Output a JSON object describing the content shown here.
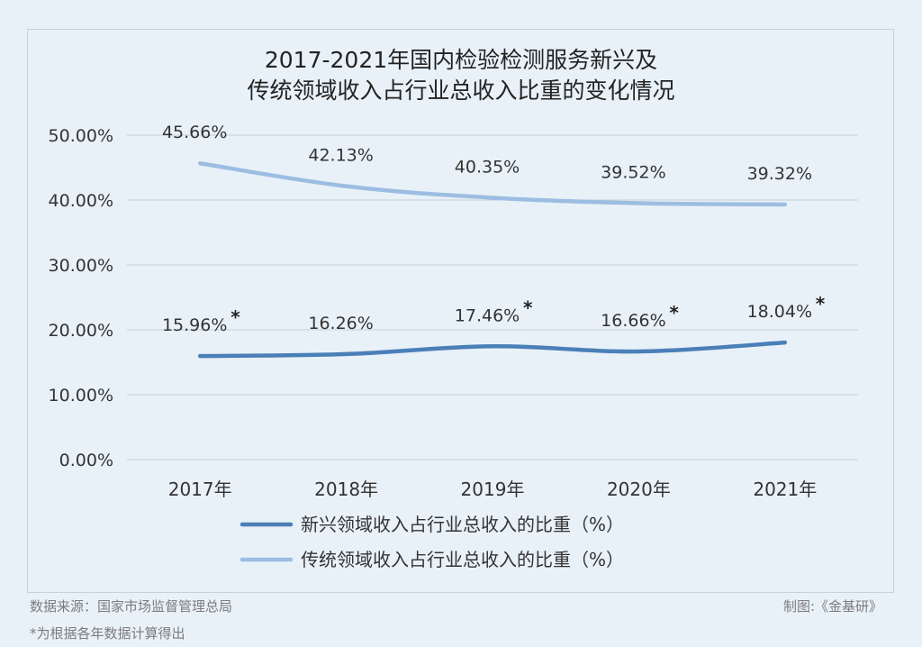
{
  "chart_data": {
    "type": "line",
    "title_lines": [
      "2017-2021年国内检验检测服务新兴及",
      "传统领域收入占行业总收入比重的变化情况"
    ],
    "categories": [
      "2017年",
      "2018年",
      "2019年",
      "2020年",
      "2021年"
    ],
    "ylim": [
      0,
      50
    ],
    "yticks": [
      "0.00%",
      "10.00%",
      "20.00%",
      "30.00%",
      "40.00%",
      "50.00%"
    ],
    "grid": true,
    "legend_position": "bottom",
    "series": [
      {
        "name": "新兴领域收入占行业总收入的比重（%）",
        "color": "#4a7fb8",
        "values": [
          15.96,
          16.26,
          17.46,
          16.66,
          18.04
        ],
        "labels": [
          "15.96%",
          "16.26%",
          "17.46%",
          "16.66%",
          "18.04%"
        ],
        "starred": [
          true,
          false,
          true,
          true,
          true
        ]
      },
      {
        "name": "传统领域收入占行业总收入的比重（%）",
        "color": "#9cbde2",
        "values": [
          45.66,
          42.13,
          40.35,
          39.52,
          39.32
        ],
        "labels": [
          "45.66%",
          "42.13%",
          "40.35%",
          "39.52%",
          "39.32%"
        ],
        "starred": [
          false,
          false,
          false,
          false,
          false
        ]
      }
    ],
    "star_symbol": "*"
  },
  "footer": {
    "source": "数据来源：国家市场监督管理总局",
    "credit": "制图:《金基研》",
    "note": "*为根据各年数据计算得出"
  }
}
